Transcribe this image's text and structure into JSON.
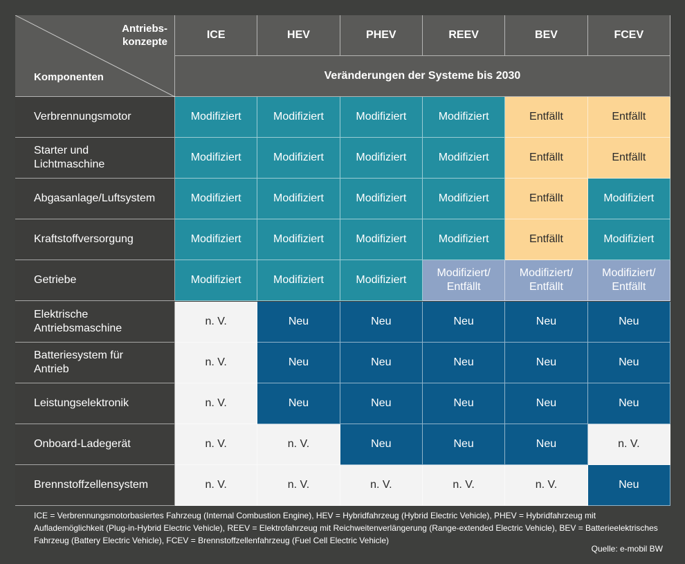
{
  "colors": {
    "background": "#3e3f3d",
    "header": "#5a5a58",
    "rowlabel": "#3d3d3b",
    "Modifiziert": "#238ea0",
    "Entfällt": "#fcd594",
    "Modifiziert/ Entfällt": "#8ea3c6",
    "Neu": "#0c5a8a",
    "n. V.": "#f3f3f3"
  },
  "chart_data": {
    "type": "table",
    "corner_top": "Antriebs-\nkonzepte",
    "corner_bottom": "Komponenten",
    "subheader": "Veränderungen der Systeme bis 2030",
    "columns": [
      "ICE",
      "HEV",
      "PHEV",
      "REEV",
      "BEV",
      "FCEV"
    ],
    "rows": [
      {
        "label": "Verbrennungsmotor",
        "values": [
          "Modifiziert",
          "Modifiziert",
          "Modifiziert",
          "Modifiziert",
          "Entfällt",
          "Entfällt"
        ]
      },
      {
        "label": "Starter und\nLichtmaschine",
        "values": [
          "Modifiziert",
          "Modifiziert",
          "Modifiziert",
          "Modifiziert",
          "Entfällt",
          "Entfällt"
        ]
      },
      {
        "label": "Abgasanlage/Luftsystem",
        "values": [
          "Modifiziert",
          "Modifiziert",
          "Modifiziert",
          "Modifiziert",
          "Entfällt",
          "Modifiziert"
        ]
      },
      {
        "label": "Kraftstoffversorgung",
        "values": [
          "Modifiziert",
          "Modifiziert",
          "Modifiziert",
          "Modifiziert",
          "Entfällt",
          "Modifiziert"
        ]
      },
      {
        "label": "Getriebe",
        "values": [
          "Modifiziert",
          "Modifiziert",
          "Modifiziert",
          "Modifiziert/\nEntfällt",
          "Modifiziert/\nEntfällt",
          "Modifiziert/\nEntfällt"
        ]
      },
      {
        "label": "Elektrische\nAntriebsmaschine",
        "values": [
          "n. V.",
          "Neu",
          "Neu",
          "Neu",
          "Neu",
          "Neu"
        ]
      },
      {
        "label": "Batteriesystem für\nAntrieb",
        "values": [
          "n. V.",
          "Neu",
          "Neu",
          "Neu",
          "Neu",
          "Neu"
        ]
      },
      {
        "label": "Leistungselektronik",
        "values": [
          "n. V.",
          "Neu",
          "Neu",
          "Neu",
          "Neu",
          "Neu"
        ]
      },
      {
        "label": "Onboard-Ladegerät",
        "values": [
          "n. V.",
          "n. V.",
          "Neu",
          "Neu",
          "Neu",
          "n. V."
        ]
      },
      {
        "label": "Brennstoffzellensystem",
        "values": [
          "n. V.",
          "n. V.",
          "n. V.",
          "n. V.",
          "n. V.",
          "Neu"
        ]
      }
    ]
  },
  "footnote": "ICE = Verbrennungsmotorbasiertes Fahrzeug (Internal Combustion Engine), HEV = Hybridfahrzeug (Hybrid Electric Vehicle), PHEV = Hybridfahrzeug mit Auflademöglichkeit (Plug-in-Hybrid Electric Vehicle), REEV = Elektrofahrzeug mit Reichweitenverlängerung (Range-extended Electric Vehicle), BEV = Batterieelektrisches Fahrzeug (Battery Electric Vehicle), FCEV = Brennstoffzellenfahrzeug (Fuel Cell Electric Vehicle)",
  "source": "Quelle: e-mobil BW"
}
